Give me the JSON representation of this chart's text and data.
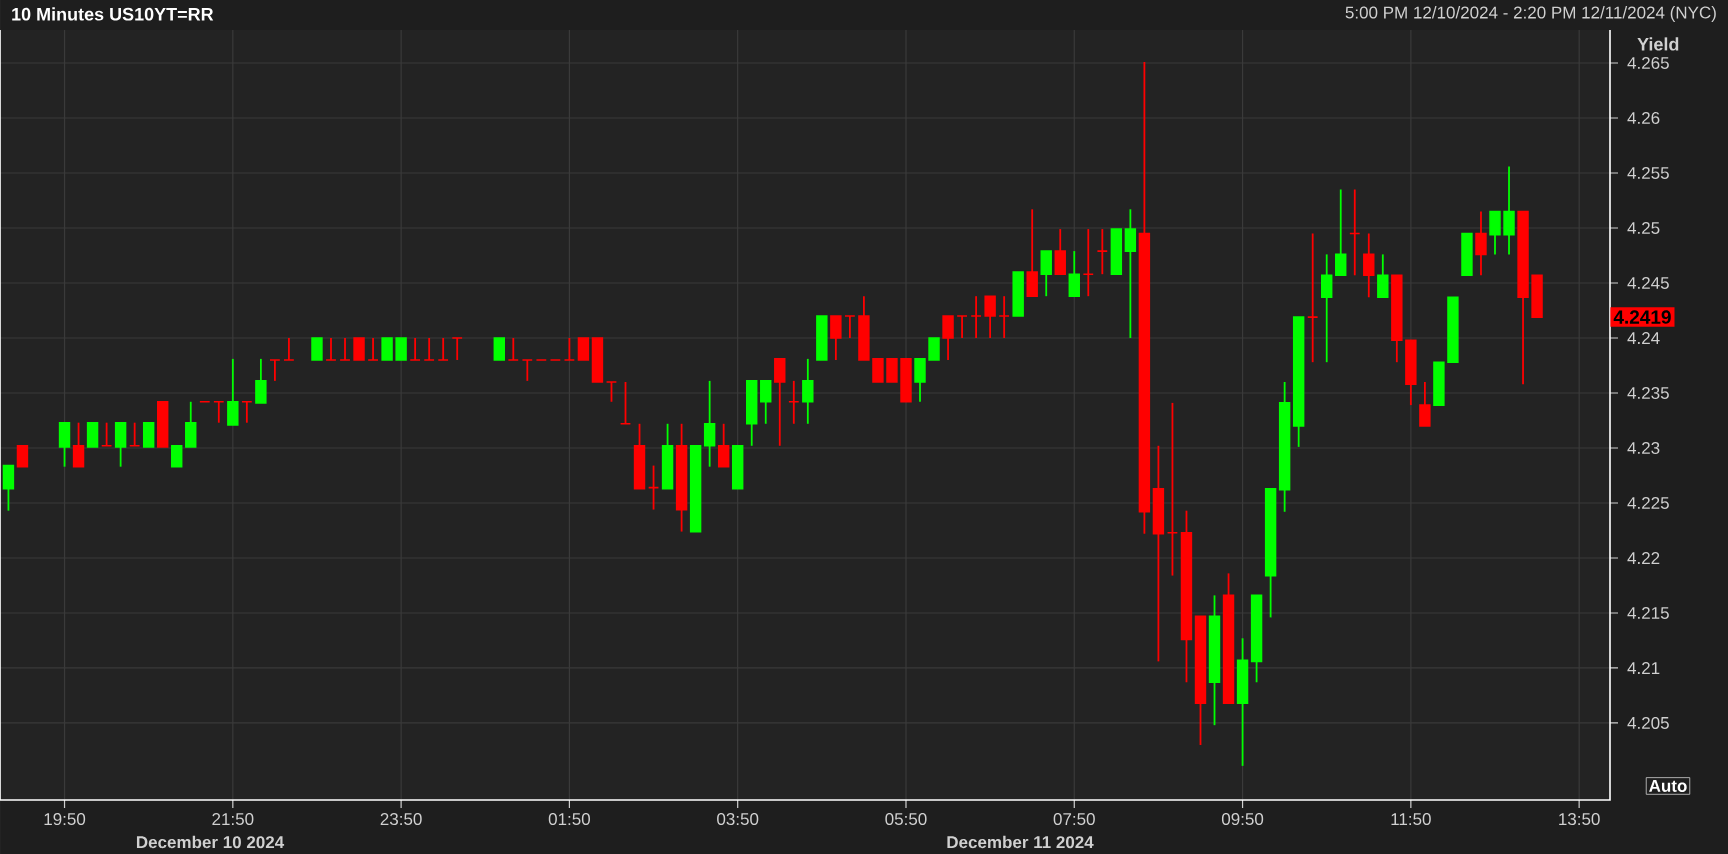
{
  "chart_data": {
    "type": "candlestick",
    "title": "10 Minutes US10YT=RR",
    "subtitle": "5:00 PM 12/10/2024 - 2:20 PM 12/11/2024 (NYC)",
    "ylabel": "Yield",
    "x": [
      "2024-12-10T19:10",
      "2024-12-10T19:20",
      "2024-12-10T19:50",
      "2024-12-10T20:00",
      "2024-12-10T20:10",
      "2024-12-10T20:20",
      "2024-12-10T20:30",
      "2024-12-10T20:40",
      "2024-12-10T20:50",
      "2024-12-10T21:00",
      "2024-12-10T21:10",
      "2024-12-10T21:20",
      "2024-12-10T21:30",
      "2024-12-10T21:40",
      "2024-12-10T21:50",
      "2024-12-10T22:00",
      "2024-12-10T22:10",
      "2024-12-10T22:20",
      "2024-12-10T22:30",
      "2024-12-10T22:50",
      "2024-12-10T23:00",
      "2024-12-10T23:10",
      "2024-12-10T23:20",
      "2024-12-10T23:30",
      "2024-12-10T23:40",
      "2024-12-10T23:50",
      "2024-12-11T00:00",
      "2024-12-11T00:10",
      "2024-12-11T00:20",
      "2024-12-11T00:30",
      "2024-12-11T01:00",
      "2024-12-11T01:10",
      "2024-12-11T01:20",
      "2024-12-11T01:30",
      "2024-12-11T01:40",
      "2024-12-11T01:50",
      "2024-12-11T02:00",
      "2024-12-11T02:10",
      "2024-12-11T02:20",
      "2024-12-11T02:30",
      "2024-12-11T02:40",
      "2024-12-11T02:50",
      "2024-12-11T03:00",
      "2024-12-11T03:10",
      "2024-12-11T03:20",
      "2024-12-11T03:30",
      "2024-12-11T03:40",
      "2024-12-11T03:50",
      "2024-12-11T04:00",
      "2024-12-11T04:10",
      "2024-12-11T04:20",
      "2024-12-11T04:30",
      "2024-12-11T04:40",
      "2024-12-11T04:50",
      "2024-12-11T05:00",
      "2024-12-11T05:10",
      "2024-12-11T05:20",
      "2024-12-11T05:30",
      "2024-12-11T05:40",
      "2024-12-11T05:50",
      "2024-12-11T06:00",
      "2024-12-11T06:10",
      "2024-12-11T06:20",
      "2024-12-11T06:30",
      "2024-12-11T06:40",
      "2024-12-11T06:50",
      "2024-12-11T07:00",
      "2024-12-11T07:10",
      "2024-12-11T07:20",
      "2024-12-11T07:30",
      "2024-12-11T07:40",
      "2024-12-11T07:50",
      "2024-12-11T08:00",
      "2024-12-11T08:10",
      "2024-12-11T08:20",
      "2024-12-11T08:30",
      "2024-12-11T08:40",
      "2024-12-11T08:50",
      "2024-12-11T09:00",
      "2024-12-11T09:10",
      "2024-12-11T09:20",
      "2024-12-11T09:30",
      "2024-12-11T09:40",
      "2024-12-11T09:50",
      "2024-12-11T10:00",
      "2024-12-11T10:10",
      "2024-12-11T10:20",
      "2024-12-11T10:30",
      "2024-12-11T10:40",
      "2024-12-11T10:50",
      "2024-12-11T11:00",
      "2024-12-11T11:10",
      "2024-12-11T11:20",
      "2024-12-11T11:30",
      "2024-12-11T11:40",
      "2024-12-11T11:50",
      "2024-12-11T12:00",
      "2024-12-11T12:10",
      "2024-12-11T12:20",
      "2024-12-11T12:30",
      "2024-12-11T12:40",
      "2024-12-11T12:50",
      "2024-12-11T13:00",
      "2024-12-11T13:10",
      "2024-12-11T13:20"
    ],
    "ohlc": [
      [
        4.2263,
        4.2284,
        4.2243,
        4.2284
      ],
      [
        4.2302,
        4.2302,
        4.2283,
        4.2283
      ],
      [
        4.2301,
        4.2323,
        4.2283,
        4.2323
      ],
      [
        4.2302,
        4.2323,
        4.2283,
        4.2283
      ],
      [
        4.2301,
        4.2323,
        4.2301,
        4.2323
      ],
      [
        4.2302,
        4.2323,
        4.2302,
        4.2302
      ],
      [
        4.2301,
        4.2323,
        4.2283,
        4.2323
      ],
      [
        4.2302,
        4.2323,
        4.2302,
        4.2302
      ],
      [
        4.2301,
        4.2323,
        4.2301,
        4.2323
      ],
      [
        4.2342,
        4.2342,
        4.2301,
        4.2301
      ],
      [
        4.2283,
        4.2302,
        4.2283,
        4.2302
      ],
      [
        4.2301,
        4.2342,
        4.2301,
        4.2323
      ],
      [
        4.2342,
        4.2342,
        4.2342,
        4.2342
      ],
      [
        4.2342,
        4.2342,
        4.2323,
        4.2342
      ],
      [
        4.2321,
        4.2381,
        4.2321,
        4.2342
      ],
      [
        4.2342,
        4.2342,
        4.2323,
        4.2342
      ],
      [
        4.2341,
        4.2381,
        4.2341,
        4.2361
      ],
      [
        4.238,
        4.238,
        4.2361,
        4.238
      ],
      [
        4.238,
        4.24,
        4.238,
        4.238
      ],
      [
        4.238,
        4.24,
        4.238,
        4.24
      ],
      [
        4.238,
        4.24,
        4.238,
        4.238
      ],
      [
        4.238,
        4.24,
        4.238,
        4.238
      ],
      [
        4.24,
        4.24,
        4.238,
        4.238
      ],
      [
        4.238,
        4.24,
        4.238,
        4.238
      ],
      [
        4.238,
        4.24,
        4.238,
        4.24
      ],
      [
        4.238,
        4.24,
        4.238,
        4.24
      ],
      [
        4.238,
        4.24,
        4.238,
        4.238
      ],
      [
        4.238,
        4.24,
        4.238,
        4.238
      ],
      [
        4.238,
        4.24,
        4.238,
        4.238
      ],
      [
        4.24,
        4.24,
        4.238,
        4.24
      ],
      [
        4.238,
        4.24,
        4.238,
        4.24
      ],
      [
        4.238,
        4.24,
        4.238,
        4.238
      ],
      [
        4.238,
        4.238,
        4.2361,
        4.238
      ],
      [
        4.238,
        4.238,
        4.238,
        4.238
      ],
      [
        4.238,
        4.238,
        4.238,
        4.238
      ],
      [
        4.238,
        4.24,
        4.238,
        4.238
      ],
      [
        4.24,
        4.24,
        4.238,
        4.238
      ],
      [
        4.24,
        4.24,
        4.236,
        4.236
      ],
      [
        4.236,
        4.236,
        4.2342,
        4.236
      ],
      [
        4.2322,
        4.236,
        4.2322,
        4.2322
      ],
      [
        4.2302,
        4.2322,
        4.2263,
        4.2263
      ],
      [
        4.2264,
        4.2284,
        4.2244,
        4.2264
      ],
      [
        4.2263,
        4.2322,
        4.2263,
        4.2302
      ],
      [
        4.2302,
        4.2322,
        4.2224,
        4.2244
      ],
      [
        4.2224,
        4.2302,
        4.2224,
        4.2302
      ],
      [
        4.2302,
        4.2361,
        4.2283,
        4.2322
      ],
      [
        4.2302,
        4.2322,
        4.2283,
        4.2283
      ],
      [
        4.2263,
        4.2302,
        4.2263,
        4.2302
      ],
      [
        4.2322,
        4.2361,
        4.2302,
        4.2361
      ],
      [
        4.2342,
        4.2361,
        4.2322,
        4.2361
      ],
      [
        4.2381,
        4.2381,
        4.2302,
        4.236
      ],
      [
        4.2342,
        4.2361,
        4.2322,
        4.2342
      ],
      [
        4.2342,
        4.2381,
        4.2322,
        4.2361
      ],
      [
        4.238,
        4.242,
        4.238,
        4.242
      ],
      [
        4.242,
        4.242,
        4.238,
        4.24
      ],
      [
        4.242,
        4.242,
        4.24,
        4.242
      ],
      [
        4.242,
        4.2438,
        4.238,
        4.238
      ],
      [
        4.2381,
        4.2381,
        4.236,
        4.236
      ],
      [
        4.2381,
        4.2381,
        4.236,
        4.236
      ],
      [
        4.2381,
        4.2381,
        4.2342,
        4.2342
      ],
      [
        4.236,
        4.2381,
        4.2342,
        4.2381
      ],
      [
        4.238,
        4.24,
        4.238,
        4.24
      ],
      [
        4.242,
        4.242,
        4.238,
        4.24
      ],
      [
        4.242,
        4.242,
        4.24,
        4.242
      ],
      [
        4.242,
        4.2438,
        4.24,
        4.242
      ],
      [
        4.2438,
        4.2438,
        4.24,
        4.242
      ],
      [
        4.242,
        4.2438,
        4.24,
        4.242
      ],
      [
        4.242,
        4.246,
        4.242,
        4.246
      ],
      [
        4.246,
        4.2517,
        4.2438,
        4.2438
      ],
      [
        4.2458,
        4.2479,
        4.2438,
        4.2479
      ],
      [
        4.2479,
        4.2499,
        4.2458,
        4.2458
      ],
      [
        4.2438,
        4.2479,
        4.2438,
        4.2458
      ],
      [
        4.2458,
        4.2499,
        4.2438,
        4.2458
      ],
      [
        4.2479,
        4.2499,
        4.2458,
        4.2479
      ],
      [
        4.2458,
        4.2499,
        4.2458,
        4.2499
      ],
      [
        4.2479,
        4.2517,
        4.24,
        4.2499
      ],
      [
        4.2495,
        4.2651,
        4.2222,
        4.2242
      ],
      [
        4.2263,
        4.2302,
        4.2106,
        4.2222
      ],
      [
        4.2223,
        4.2341,
        4.2184,
        4.2223
      ],
      [
        4.2223,
        4.2243,
        4.2087,
        4.2126
      ],
      [
        4.2147,
        4.2147,
        4.203,
        4.2068
      ],
      [
        4.2087,
        4.2166,
        4.2048,
        4.2147
      ],
      [
        4.2166,
        4.2186,
        4.2068,
        4.2068
      ],
      [
        4.2068,
        4.2127,
        4.2011,
        4.2107
      ],
      [
        4.2106,
        4.2166,
        4.2087,
        4.2166
      ],
      [
        4.2184,
        4.2263,
        4.2146,
        4.2263
      ],
      [
        4.2262,
        4.236,
        4.2242,
        4.2341
      ],
      [
        4.232,
        4.2419,
        4.2301,
        4.2419
      ],
      [
        4.2419,
        4.2495,
        4.2378,
        4.2419
      ],
      [
        4.2437,
        4.2476,
        4.2378,
        4.2457
      ],
      [
        4.2457,
        4.2535,
        4.2457,
        4.2476
      ],
      [
        4.2495,
        4.2535,
        4.2457,
        4.2495
      ],
      [
        4.2476,
        4.2495,
        4.2437,
        4.2457
      ],
      [
        4.2437,
        4.2476,
        4.2437,
        4.2457
      ],
      [
        4.2457,
        4.2457,
        4.2378,
        4.2398
      ],
      [
        4.2398,
        4.2398,
        4.2339,
        4.2358
      ],
      [
        4.2339,
        4.236,
        4.232,
        4.232
      ],
      [
        4.2339,
        4.2378,
        4.2339,
        4.2378
      ],
      [
        4.2378,
        4.2437,
        4.2378,
        4.2437
      ],
      [
        4.2457,
        4.2495,
        4.2457,
        4.2495
      ],
      [
        4.2495,
        4.2515,
        4.2457,
        4.2476
      ],
      [
        4.2494,
        4.2515,
        4.2476,
        4.2515
      ],
      [
        4.2494,
        4.2556,
        4.2476,
        4.2515
      ],
      [
        4.2515,
        4.2515,
        4.2358,
        4.2437
      ],
      [
        4.2457,
        4.2457,
        4.2419,
        4.2419
      ]
    ],
    "colors": [
      "#00ff00",
      "#ff0000",
      "#00ff00",
      "#ff0000",
      "#00ff00",
      "#ff0000",
      "#00ff00",
      "#ff0000",
      "#00ff00",
      "#ff0000",
      "#00ff00",
      "#00ff00",
      "#ff0000",
      "#ff0000",
      "#00ff00",
      "#ff0000",
      "#00ff00",
      "#ff0000",
      "#ff0000",
      "#00ff00",
      "#ff0000",
      "#ff0000",
      "#ff0000",
      "#ff0000",
      "#00ff00",
      "#00ff00",
      "#ff0000",
      "#ff0000",
      "#ff0000",
      "#ff0000",
      "#00ff00",
      "#ff0000",
      "#ff0000",
      "#ff0000",
      "#ff0000",
      "#ff0000",
      "#ff0000",
      "#ff0000",
      "#ff0000",
      "#ff0000",
      "#ff0000",
      "#ff0000",
      "#00ff00",
      "#ff0000",
      "#00ff00",
      "#00ff00",
      "#ff0000",
      "#00ff00",
      "#00ff00",
      "#00ff00",
      "#ff0000",
      "#ff0000",
      "#00ff00",
      "#00ff00",
      "#ff0000",
      "#ff0000",
      "#ff0000",
      "#ff0000",
      "#ff0000",
      "#ff0000",
      "#00ff00",
      "#00ff00",
      "#ff0000",
      "#ff0000",
      "#ff0000",
      "#ff0000",
      "#ff0000",
      "#00ff00",
      "#ff0000",
      "#00ff00",
      "#ff0000",
      "#00ff00",
      "#ff0000",
      "#ff0000",
      "#00ff00",
      "#00ff00",
      "#ff0000",
      "#ff0000",
      "#ff0000",
      "#ff0000",
      "#ff0000",
      "#00ff00",
      "#ff0000",
      "#00ff00",
      "#00ff00",
      "#00ff00",
      "#00ff00",
      "#00ff00",
      "#ff0000",
      "#00ff00",
      "#00ff00",
      "#ff0000",
      "#ff0000",
      "#00ff00",
      "#ff0000",
      "#ff0000",
      "#ff0000",
      "#00ff00",
      "#00ff00",
      "#00ff00",
      "#ff0000",
      "#00ff00",
      "#00ff00",
      "#ff0000",
      "#ff0000"
    ],
    "xlim": [
      "2024-12-10T19:04",
      "2024-12-11T14:12"
    ],
    "xticks": [
      {
        "value": "2024-12-10T19:50",
        "label": "19:50"
      },
      {
        "value": "2024-12-10T21:50",
        "label": "21:50"
      },
      {
        "value": "2024-12-10T23:50",
        "label": "23:50"
      },
      {
        "value": "2024-12-11T01:50",
        "label": "01:50"
      },
      {
        "value": "2024-12-11T03:50",
        "label": "03:50"
      },
      {
        "value": "2024-12-11T05:50",
        "label": "05:50"
      },
      {
        "value": "2024-12-11T07:50",
        "label": "07:50"
      },
      {
        "value": "2024-12-11T09:50",
        "label": "09:50"
      },
      {
        "value": "2024-12-11T11:50",
        "label": "11:50"
      },
      {
        "value": "2024-12-11T13:50",
        "label": "13:50"
      }
    ],
    "ylim": [
      4.198,
      4.268
    ],
    "yticks": [
      4.205,
      4.21,
      4.215,
      4.22,
      4.225,
      4.23,
      4.235,
      4.24,
      4.245,
      4.25,
      4.255,
      4.26,
      4.265
    ],
    "grid": true,
    "annotations": [
      "December 10 2024",
      "December 11 2024",
      "Auto",
      "4.2419"
    ]
  }
}
